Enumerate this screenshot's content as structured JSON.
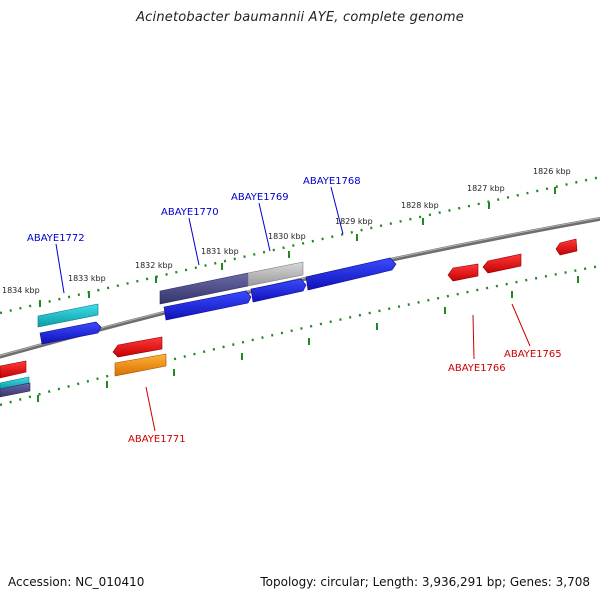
{
  "title": "Acinetobacter baumannii AYE, complete genome",
  "footer": {
    "accession": "Accession: NC_010410",
    "stats": "Topology: circular; Length: 3,936,291 bp; Genes: 3,708"
  },
  "colors": {
    "backbone": "#7a7a7a",
    "ruler": "#1f8a1f",
    "forward_label": "#0000cc",
    "reverse_label": "#cc0000"
  },
  "ruler": {
    "labels": [
      "1834 kbp",
      "1833 kbp",
      "1832 kbp",
      "1831 kbp",
      "1830 kbp",
      "1829 kbp",
      "1828 kbp",
      "1827 kbp",
      "1826 kbp"
    ]
  },
  "genes": {
    "labels": [
      "ABAYE1772",
      "ABAYE1770",
      "ABAYE1769",
      "ABAYE1768",
      "ABAYE1771",
      "ABAYE1766",
      "ABAYE1765"
    ]
  },
  "features": {
    "colors": [
      "#1aa7b2",
      "#2030d8",
      "#4a4a8c",
      "#a8a8a8",
      "#e81010",
      "#ee8a10"
    ]
  }
}
